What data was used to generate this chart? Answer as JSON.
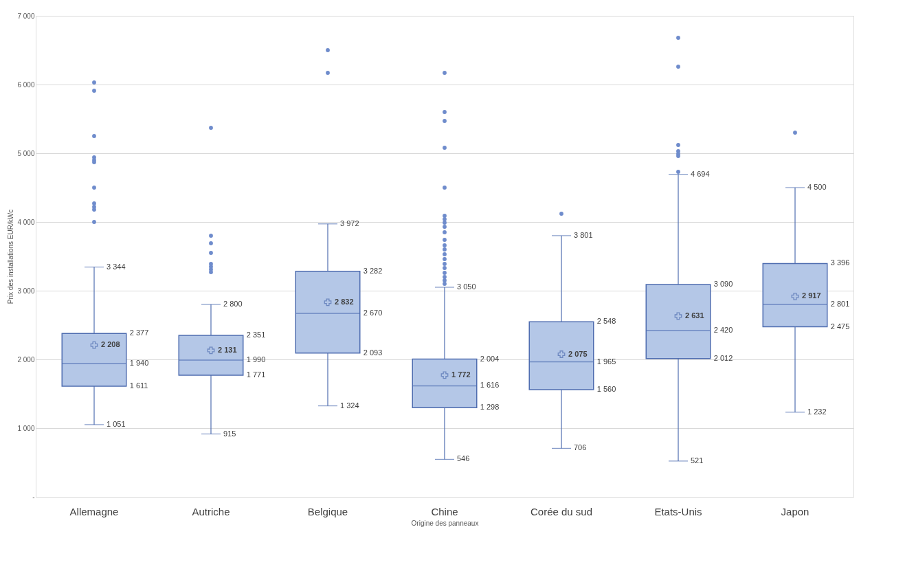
{
  "chart_data": {
    "type": "box",
    "xlabel": "Origine des panneaux",
    "ylabel": "Prix des installations EUR/kWc",
    "categories": [
      "Allemagne",
      "Autriche",
      "Belgique",
      "Chine",
      "Corée du sud",
      "Etats-Unis",
      "Japon"
    ],
    "boxes": [
      {
        "low": 1051,
        "q1": 1611,
        "median": 1940,
        "q3": 2377,
        "high": 3344,
        "mean": 2208,
        "outliers": [
          6030,
          5910,
          5250,
          4940,
          4900,
          4870,
          4500,
          4270,
          4220,
          4180,
          4000
        ]
      },
      {
        "low": 915,
        "q1": 1771,
        "median": 1990,
        "q3": 2351,
        "high": 2800,
        "mean": 2131,
        "outliers": [
          5370,
          3800,
          3690,
          3550,
          3390,
          3350,
          3310,
          3270
        ]
      },
      {
        "low": 1324,
        "q1": 2093,
        "median": 2670,
        "q3": 3282,
        "high": 3972,
        "mean": 2832,
        "outliers": [
          6500,
          6170
        ]
      },
      {
        "low": 546,
        "q1": 1298,
        "median": 1616,
        "q3": 2004,
        "high": 3050,
        "mean": 1772,
        "outliers": [
          6170,
          5600,
          5470,
          5080,
          4500,
          4090,
          4040,
          3990,
          3930,
          3850,
          3740,
          3660,
          3600,
          3530,
          3460,
          3390,
          3330,
          3260,
          3200,
          3150,
          3100
        ]
      },
      {
        "low": 706,
        "q1": 1560,
        "median": 1965,
        "q3": 2548,
        "high": 3801,
        "mean": 2075,
        "outliers": [
          4120
        ]
      },
      {
        "low": 521,
        "q1": 2012,
        "median": 2420,
        "q3": 3090,
        "high": 4694,
        "mean": 2631,
        "outliers": [
          6680,
          6260,
          5120,
          5030,
          4990,
          4960,
          4730
        ]
      },
      {
        "low": 1232,
        "q1": 2475,
        "median": 2801,
        "q3": 3396,
        "high": 4500,
        "mean": 2917,
        "outliers": [
          5300
        ]
      }
    ],
    "annotations": [
      "3 344",
      "2 377",
      "2 208",
      "1 940",
      "1 611",
      "1 051",
      "2 800",
      "2 351",
      "2 131",
      "1 990",
      "1 771",
      "915",
      "3 972",
      "3 282",
      "2 832",
      "2 670",
      "2 093",
      "1 324",
      "3 050",
      "2 004",
      "1 772",
      "1 616",
      "1 298",
      "546",
      "3 801",
      "2 548",
      "2 075",
      "1 965",
      "1 560",
      "706",
      "4 694",
      "3 090",
      "2 631",
      "2 420",
      "2 012",
      "521",
      "4 500",
      "3 396",
      "2 917",
      "2 801",
      "2 475",
      "1 232"
    ],
    "color": "#b4c7e7",
    "ylim": [
      0,
      7000
    ],
    "yticks": [
      {
        "value": 0,
        "label": "-"
      },
      {
        "value": 1000,
        "label": "1 000"
      },
      {
        "value": 2000,
        "label": "2 000"
      },
      {
        "value": 3000,
        "label": "3 000"
      },
      {
        "value": 4000,
        "label": "4 000"
      },
      {
        "value": 5000,
        "label": "5 000"
      },
      {
        "value": 6000,
        "label": "6 000"
      },
      {
        "value": 7000,
        "label": "7 000"
      }
    ],
    "grid": "y",
    "marker": "cross"
  }
}
